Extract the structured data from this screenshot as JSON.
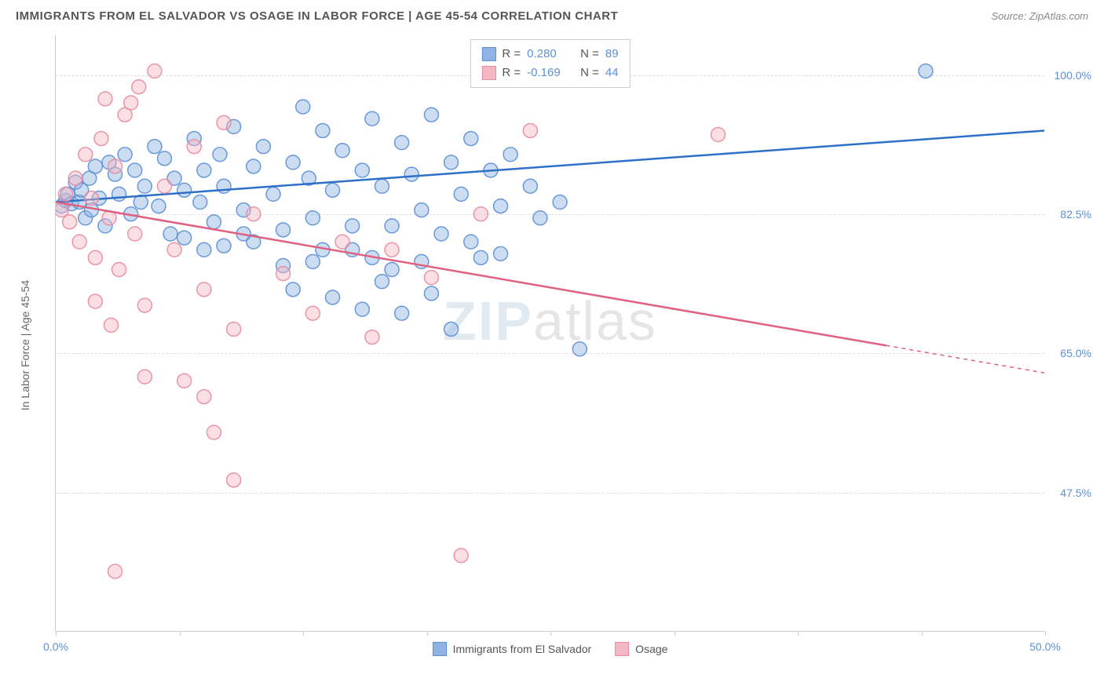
{
  "title": "IMMIGRANTS FROM EL SALVADOR VS OSAGE IN LABOR FORCE | AGE 45-54 CORRELATION CHART",
  "source": "Source: ZipAtlas.com",
  "watermark_bold": "ZIP",
  "watermark_thin": "atlas",
  "chart": {
    "type": "scatter",
    "background_color": "#ffffff",
    "grid_color": "#dddddd",
    "border_color": "#cccccc",
    "xlim": [
      0,
      50
    ],
    "ylim": [
      30,
      105
    ],
    "xtick_positions": [
      0,
      6.25,
      12.5,
      18.75,
      25,
      31.25,
      37.5,
      43.75,
      50
    ],
    "xtick_labels_shown": {
      "0": "0.0%",
      "50": "50.0%"
    },
    "ytick_positions": [
      47.5,
      65.0,
      82.5,
      100.0
    ],
    "ytick_labels": [
      "47.5%",
      "65.0%",
      "82.5%",
      "100.0%"
    ],
    "y_axis_label": "In Labor Force | Age 45-54",
    "marker_radius": 9,
    "marker_opacity": 0.45,
    "marker_stroke_opacity": 0.9,
    "line_width": 2.5,
    "series": [
      {
        "name": "Immigrants from El Salvador",
        "color_fill": "#8fb4e3",
        "color_stroke": "#5b8fd6",
        "color_line": "#2e6fc7",
        "R": "0.280",
        "N": "89",
        "trend": {
          "x1": 0,
          "y1": 84.0,
          "x2": 50,
          "y2": 93.0,
          "solid_until_x": 50
        },
        "points": [
          [
            0.3,
            83.5
          ],
          [
            0.5,
            84.2
          ],
          [
            0.6,
            85.0
          ],
          [
            0.8,
            83.8
          ],
          [
            1.0,
            86.5
          ],
          [
            1.2,
            84.0
          ],
          [
            1.3,
            85.5
          ],
          [
            1.5,
            82.0
          ],
          [
            1.7,
            87.0
          ],
          [
            1.8,
            83.0
          ],
          [
            2.0,
            88.5
          ],
          [
            2.2,
            84.5
          ],
          [
            2.5,
            81.0
          ],
          [
            2.7,
            89.0
          ],
          [
            3.0,
            87.5
          ],
          [
            3.2,
            85.0
          ],
          [
            3.5,
            90.0
          ],
          [
            3.8,
            82.5
          ],
          [
            4.0,
            88.0
          ],
          [
            4.3,
            84.0
          ],
          [
            4.5,
            86.0
          ],
          [
            5.0,
            91.0
          ],
          [
            5.2,
            83.5
          ],
          [
            5.5,
            89.5
          ],
          [
            5.8,
            80.0
          ],
          [
            6.0,
            87.0
          ],
          [
            6.5,
            85.5
          ],
          [
            7.0,
            92.0
          ],
          [
            7.3,
            84.0
          ],
          [
            7.5,
            88.0
          ],
          [
            8.0,
            81.5
          ],
          [
            8.3,
            90.0
          ],
          [
            8.5,
            86.0
          ],
          [
            9.0,
            93.5
          ],
          [
            9.5,
            83.0
          ],
          [
            10.0,
            88.5
          ],
          [
            10.5,
            91.0
          ],
          [
            11.0,
            85.0
          ],
          [
            11.5,
            76.0
          ],
          [
            12.0,
            89.0
          ],
          [
            12.5,
            96.0
          ],
          [
            12.8,
            87.0
          ],
          [
            13.0,
            82.0
          ],
          [
            13.5,
            93.0
          ],
          [
            14.0,
            85.5
          ],
          [
            14.5,
            90.5
          ],
          [
            15.0,
            78.0
          ],
          [
            15.5,
            88.0
          ],
          [
            16.0,
            94.5
          ],
          [
            16.5,
            86.0
          ],
          [
            17.0,
            81.0
          ],
          [
            17.5,
            91.5
          ],
          [
            18.0,
            87.5
          ],
          [
            18.5,
            83.0
          ],
          [
            19.0,
            95.0
          ],
          [
            19.5,
            80.0
          ],
          [
            20.0,
            89.0
          ],
          [
            20.5,
            85.0
          ],
          [
            21.0,
            92.0
          ],
          [
            21.5,
            77.0
          ],
          [
            22.0,
            88.0
          ],
          [
            22.5,
            83.5
          ],
          [
            23.0,
            90.0
          ],
          [
            24.0,
            86.0
          ],
          [
            12.0,
            73.0
          ],
          [
            13.0,
            76.5
          ],
          [
            14.0,
            72.0
          ],
          [
            15.5,
            70.5
          ],
          [
            16.5,
            74.0
          ],
          [
            17.5,
            70.0
          ],
          [
            19.0,
            72.5
          ],
          [
            20.0,
            68.0
          ],
          [
            10.0,
            79.0
          ],
          [
            11.5,
            80.5
          ],
          [
            13.5,
            78.0
          ],
          [
            15.0,
            81.0
          ],
          [
            8.5,
            78.5
          ],
          [
            9.5,
            80.0
          ],
          [
            6.5,
            79.5
          ],
          [
            7.5,
            78.0
          ],
          [
            24.5,
            82.0
          ],
          [
            25.5,
            84.0
          ],
          [
            21.0,
            79.0
          ],
          [
            22.5,
            77.5
          ],
          [
            26.5,
            65.5
          ],
          [
            17.0,
            75.5
          ],
          [
            18.5,
            76.5
          ],
          [
            16.0,
            77.0
          ],
          [
            44.0,
            100.5
          ]
        ]
      },
      {
        "name": "Osage",
        "color_fill": "#f4b8c4",
        "color_stroke": "#e88ba0",
        "color_line": "#e06080",
        "R": "-0.169",
        "N": "44",
        "trend": {
          "x1": 0,
          "y1": 84.0,
          "x2": 50,
          "y2": 62.5,
          "solid_until_x": 42
        },
        "points": [
          [
            0.3,
            83.0
          ],
          [
            0.5,
            85.0
          ],
          [
            0.7,
            81.5
          ],
          [
            1.0,
            87.0
          ],
          [
            1.2,
            79.0
          ],
          [
            1.5,
            90.0
          ],
          [
            1.8,
            84.5
          ],
          [
            2.0,
            77.0
          ],
          [
            2.3,
            92.0
          ],
          [
            2.7,
            82.0
          ],
          [
            3.0,
            88.5
          ],
          [
            3.2,
            75.5
          ],
          [
            3.5,
            95.0
          ],
          [
            4.0,
            80.0
          ],
          [
            4.5,
            71.0
          ],
          [
            5.0,
            100.5
          ],
          [
            4.2,
            98.5
          ],
          [
            2.5,
            97.0
          ],
          [
            3.8,
            96.5
          ],
          [
            5.5,
            86.0
          ],
          [
            6.0,
            78.0
          ],
          [
            7.0,
            91.0
          ],
          [
            7.5,
            73.0
          ],
          [
            8.5,
            94.0
          ],
          [
            9.0,
            68.0
          ],
          [
            10.0,
            82.5
          ],
          [
            11.5,
            75.0
          ],
          [
            13.0,
            70.0
          ],
          [
            14.5,
            79.0
          ],
          [
            16.0,
            67.0
          ],
          [
            2.0,
            71.5
          ],
          [
            2.8,
            68.5
          ],
          [
            4.5,
            62.0
          ],
          [
            6.5,
            61.5
          ],
          [
            7.5,
            59.5
          ],
          [
            8.0,
            55.0
          ],
          [
            9.0,
            49.0
          ],
          [
            3.0,
            37.5
          ],
          [
            20.5,
            39.5
          ],
          [
            17.0,
            78.0
          ],
          [
            24.0,
            93.0
          ],
          [
            33.5,
            92.5
          ],
          [
            21.5,
            82.5
          ],
          [
            19.0,
            74.5
          ]
        ]
      }
    ]
  },
  "legend_top": {
    "rows": [
      {
        "swatch_fill": "#8fb4e3",
        "swatch_stroke": "#5b8fd6",
        "r_label": "R =",
        "r_val": "0.280",
        "n_label": "N =",
        "n_val": "89"
      },
      {
        "swatch_fill": "#f4b8c4",
        "swatch_stroke": "#e88ba0",
        "r_label": "R =",
        "r_val": "-0.169",
        "n_label": "N =",
        "n_val": "44"
      }
    ]
  },
  "legend_bottom": [
    {
      "swatch_fill": "#8fb4e3",
      "swatch_stroke": "#5b8fd6",
      "label": "Immigrants from El Salvador"
    },
    {
      "swatch_fill": "#f4b8c4",
      "swatch_stroke": "#e88ba0",
      "label": "Osage"
    }
  ]
}
